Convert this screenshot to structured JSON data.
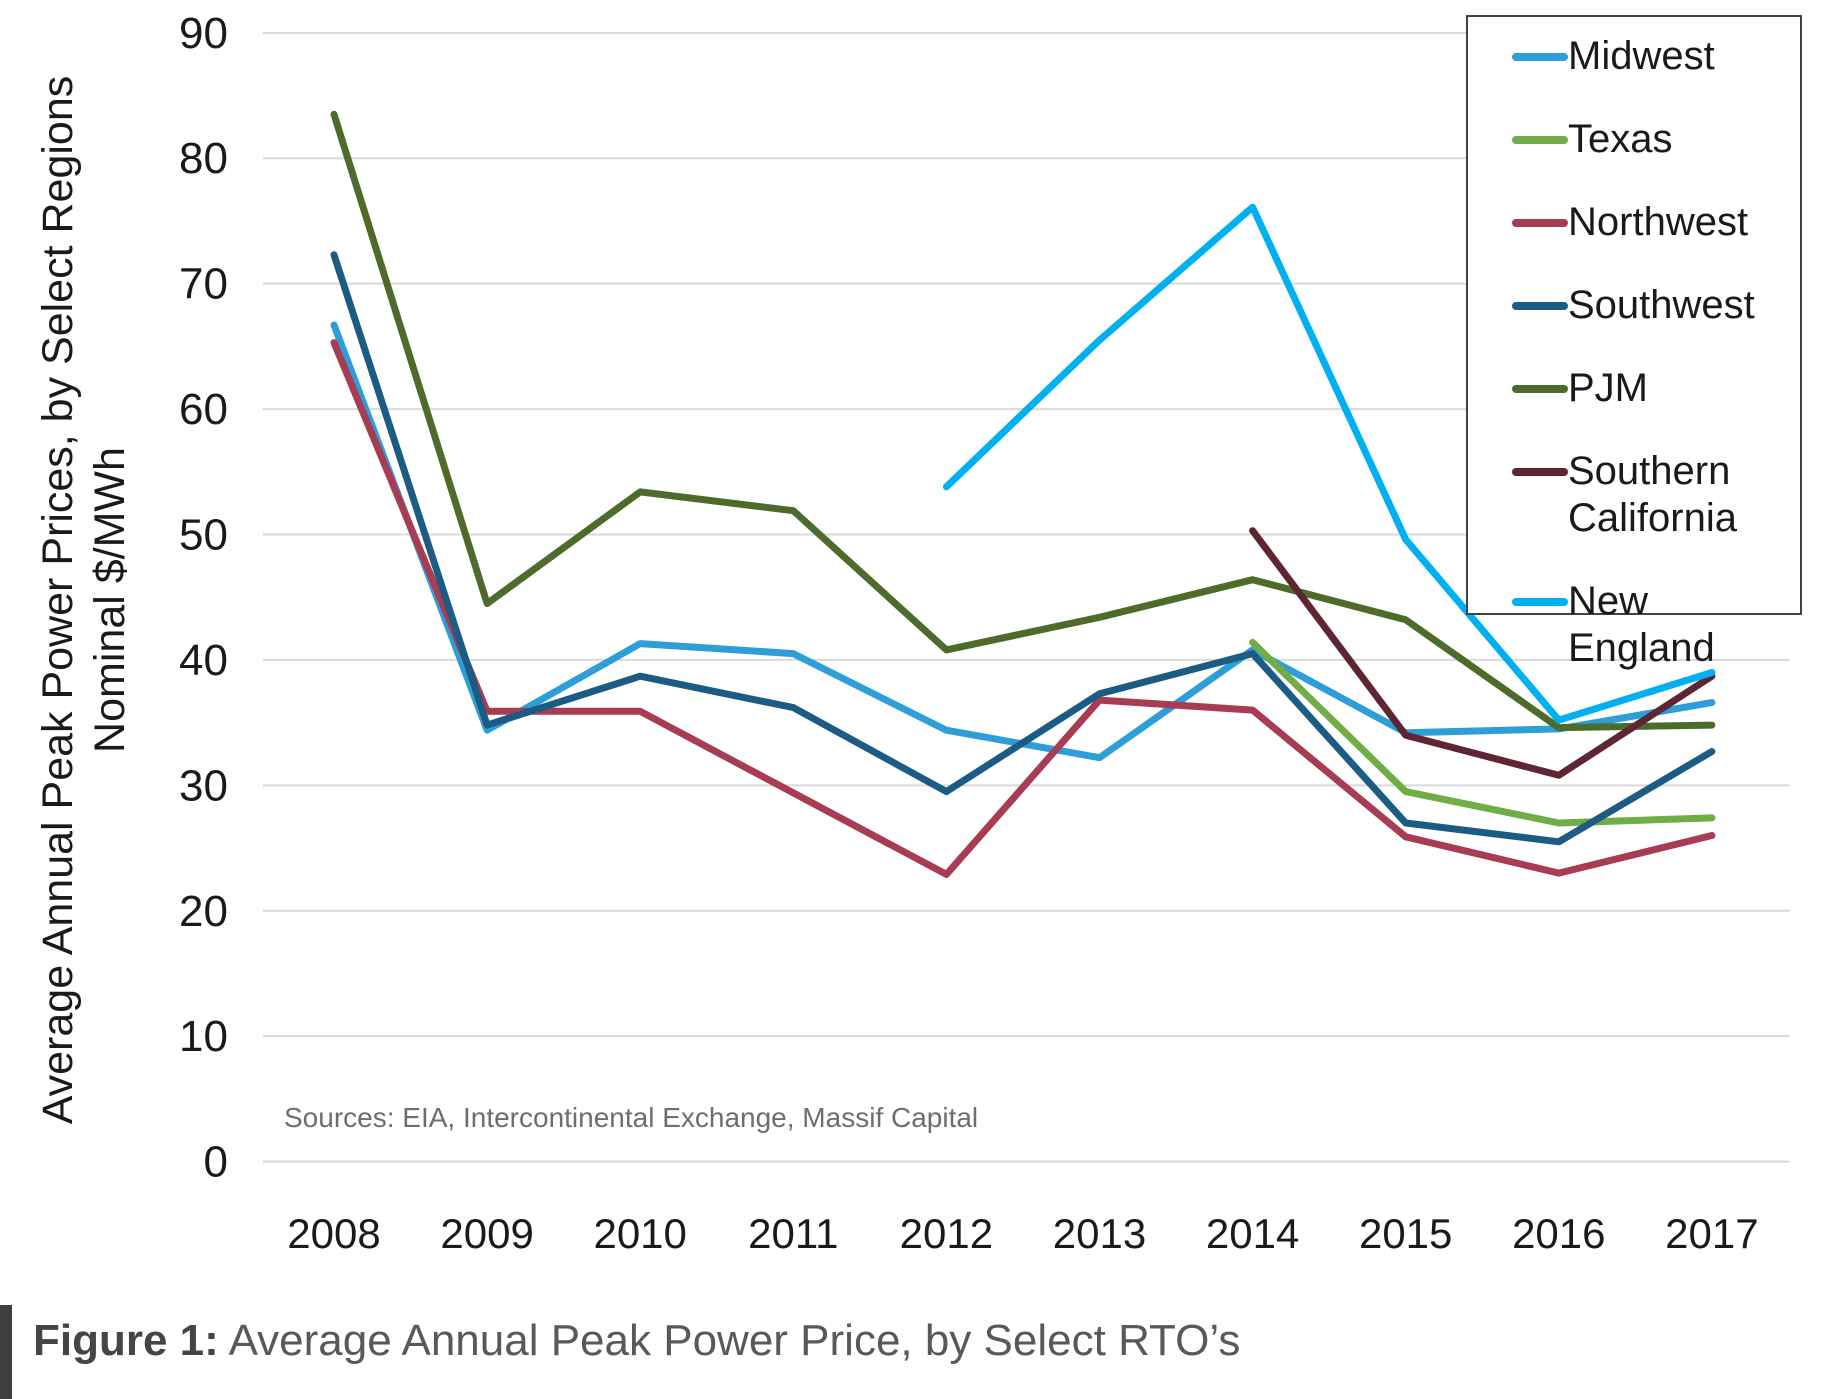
{
  "figure": {
    "caption_prefix": "Figure 1:",
    "caption_text": " Average Annual Peak Power Price, by Select RTO’s"
  },
  "chart_data": {
    "type": "line",
    "title": "",
    "categories": [
      "2008",
      "2009",
      "2010",
      "2011",
      "2012",
      "2013",
      "2014",
      "2015",
      "2016",
      "2017"
    ],
    "series": [
      {
        "name": "Midwest",
        "color": "#2E9ED9",
        "values": [
          66.7,
          34.4,
          41.3,
          40.5,
          34.4,
          32.2,
          40.8,
          34.2,
          34.5,
          36.6
        ]
      },
      {
        "name": "Texas",
        "color": "#70AD47",
        "values": [
          null,
          null,
          null,
          null,
          null,
          null,
          41.4,
          29.5,
          27.0,
          27.4
        ]
      },
      {
        "name": "Northwest",
        "color": "#A73C52",
        "values": [
          65.3,
          35.9,
          35.9,
          29.4,
          22.9,
          36.8,
          36.0,
          25.9,
          23.0,
          26.0
        ]
      },
      {
        "name": "Southwest",
        "color": "#1C5C84",
        "values": [
          72.3,
          34.8,
          38.7,
          36.2,
          29.5,
          37.3,
          40.5,
          27.0,
          25.5,
          32.7
        ]
      },
      {
        "name": "PJM",
        "color": "#4D6B2B",
        "values": [
          83.5,
          44.5,
          53.4,
          51.9,
          40.8,
          43.4,
          46.4,
          43.2,
          34.6,
          34.8
        ]
      },
      {
        "name": "Southern California",
        "color": "#5E2532",
        "values": [
          null,
          null,
          null,
          null,
          null,
          null,
          50.3,
          34.0,
          30.8,
          38.7
        ]
      },
      {
        "name": "New England",
        "color": "#00B0F0",
        "values": [
          null,
          null,
          null,
          null,
          53.8,
          65.5,
          76.1,
          49.6,
          35.2,
          39.0
        ]
      }
    ],
    "xlabel": "",
    "ylabel_line1": "Average Annual Peak Power Prices, by Select Regions",
    "ylabel_line2": "Nominal $/MWh",
    "y_ticks": [
      0,
      10,
      20,
      30,
      40,
      50,
      60,
      70,
      80,
      90
    ],
    "ylim": [
      0,
      90
    ],
    "grid": true,
    "gridline_color": "#D9D9D9",
    "legend_position": "top-right",
    "sources_note": "Sources: EIA, Intercontinental Exchange, Massif Capital"
  }
}
